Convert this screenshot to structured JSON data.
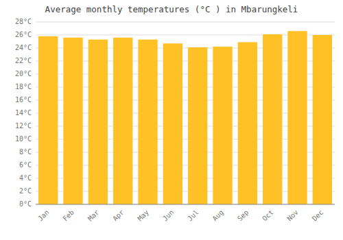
{
  "chart_data": {
    "type": "bar",
    "title": "Average monthly temperatures (°C ) in Mbarungkeli",
    "categories": [
      "Jan",
      "Feb",
      "Mar",
      "Apr",
      "May",
      "Jun",
      "Jul",
      "Aug",
      "Sep",
      "Oct",
      "Nov",
      "Dec"
    ],
    "values": [
      25.8,
      25.6,
      25.3,
      25.6,
      25.3,
      24.7,
      24.1,
      24.2,
      24.9,
      26.1,
      26.6,
      26.0
    ],
    "color": "#FFC125",
    "ylim": [
      0,
      28
    ],
    "yticks": [
      {
        "value": 0,
        "label": "0°C"
      },
      {
        "value": 2,
        "label": "2°C"
      },
      {
        "value": 4,
        "label": "4°C"
      },
      {
        "value": 6,
        "label": "6°C"
      },
      {
        "value": 8,
        "label": "8°C"
      },
      {
        "value": 10,
        "label": "10°C"
      },
      {
        "value": 12,
        "label": "12°C"
      },
      {
        "value": 14,
        "label": "14°C"
      },
      {
        "value": 16,
        "label": "16°C"
      },
      {
        "value": 18,
        "label": "18°C"
      },
      {
        "value": 20,
        "label": "20°C"
      },
      {
        "value": 22,
        "label": "22°C"
      },
      {
        "value": 24,
        "label": "24°C"
      },
      {
        "value": 26,
        "label": "26°C"
      },
      {
        "value": 28,
        "label": "28°C"
      }
    ],
    "grid": true
  }
}
